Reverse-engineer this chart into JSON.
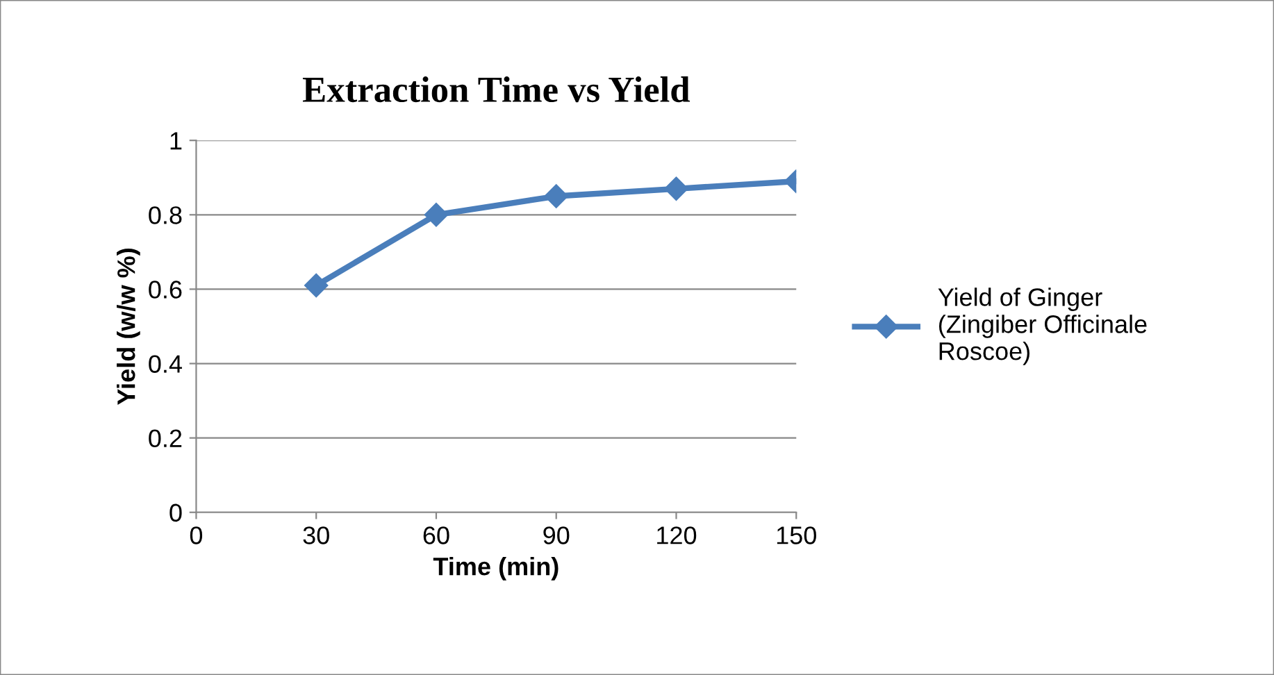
{
  "chart_data": {
    "type": "line",
    "title": "Extraction Time vs Yield",
    "xlabel": "Time (min)",
    "ylabel": "Yield (w/w %)",
    "x": [
      30,
      60,
      90,
      120,
      150
    ],
    "series": [
      {
        "name": "Yield of Ginger (Zingiber Officinale Roscoe)",
        "color": "#4a7ebb",
        "values": [
          0.61,
          0.8,
          0.85,
          0.87,
          0.89
        ]
      }
    ],
    "xlim": [
      0,
      150
    ],
    "xticks": [
      0,
      30,
      60,
      90,
      120,
      150
    ],
    "ylim": [
      0,
      1
    ],
    "yticks": [
      0,
      0.2,
      0.4,
      0.6,
      0.8,
      1
    ],
    "grid": "y",
    "legend": "right",
    "marker": "diamond",
    "line_style": "solid"
  }
}
